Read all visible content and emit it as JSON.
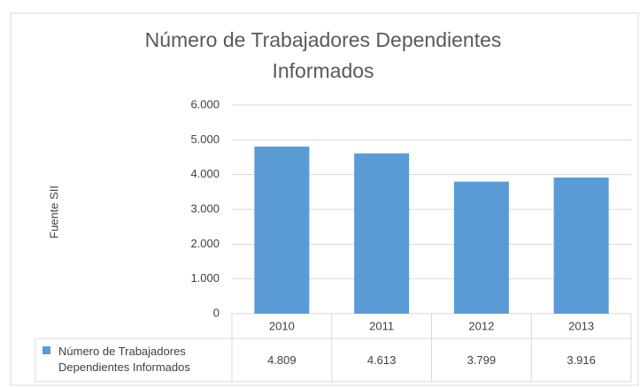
{
  "chart_data": {
    "type": "bar",
    "title": "Número de Trabajadores Dependientes Informados",
    "ylabel": "Fuente SII",
    "categories": [
      "2010",
      "2011",
      "2012",
      "2013"
    ],
    "series": [
      {
        "name": "Número de Trabajadores Dependientes Informados",
        "color": "#5b9bd5",
        "values": [
          4809,
          4613,
          3799,
          3916
        ],
        "value_labels": [
          "4.809",
          "4.613",
          "3.799",
          "3.916"
        ]
      }
    ],
    "ylim": [
      0,
      6000
    ],
    "yticks": [
      0,
      {
        "value": 1000,
        "label": "1.000"
      },
      {
        "value": 2000,
        "label": "2.000"
      },
      {
        "value": 3000,
        "label": "3.000"
      },
      {
        "value": 4000,
        "label": "4.000"
      },
      {
        "value": 5000,
        "label": "5.000"
      },
      {
        "value": 6000,
        "label": "6.000"
      }
    ],
    "grid": true
  }
}
